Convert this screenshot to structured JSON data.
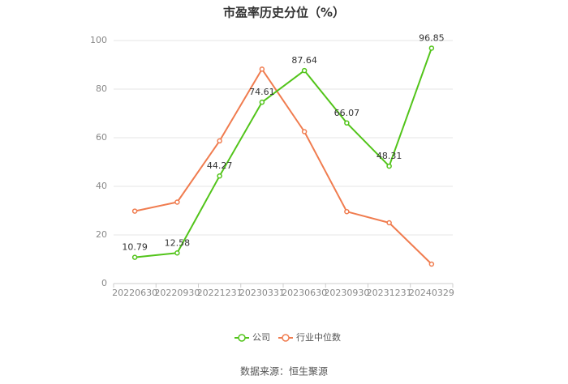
{
  "chart_data": {
    "type": "line",
    "title": "市盈率历史分位（%）",
    "xlabel": "",
    "ylabel": "",
    "categories": [
      "20220630",
      "20220930",
      "20221231",
      "20230331",
      "20230630",
      "20230930",
      "20231231",
      "20240329"
    ],
    "ylim": [
      0,
      100
    ],
    "yticks": [
      0,
      20,
      40,
      60,
      80,
      100
    ],
    "grid": true,
    "legend_position": "bottom",
    "series": [
      {
        "name": "公司",
        "color": "#52c41a",
        "values": [
          10.79,
          12.58,
          44.27,
          74.61,
          87.64,
          66.07,
          48.31,
          96.85
        ],
        "labels": [
          "10.79",
          "12.58",
          "44.27",
          "74.61",
          "87.64",
          "66.07",
          "48.31",
          "96.85"
        ]
      },
      {
        "name": "行业中位数",
        "color": "#f07c4f",
        "values": [
          29.8,
          33.5,
          58.7,
          88.2,
          62.5,
          29.6,
          25.0,
          8.0
        ]
      }
    ]
  },
  "source_text": "数据来源：恒生聚源"
}
